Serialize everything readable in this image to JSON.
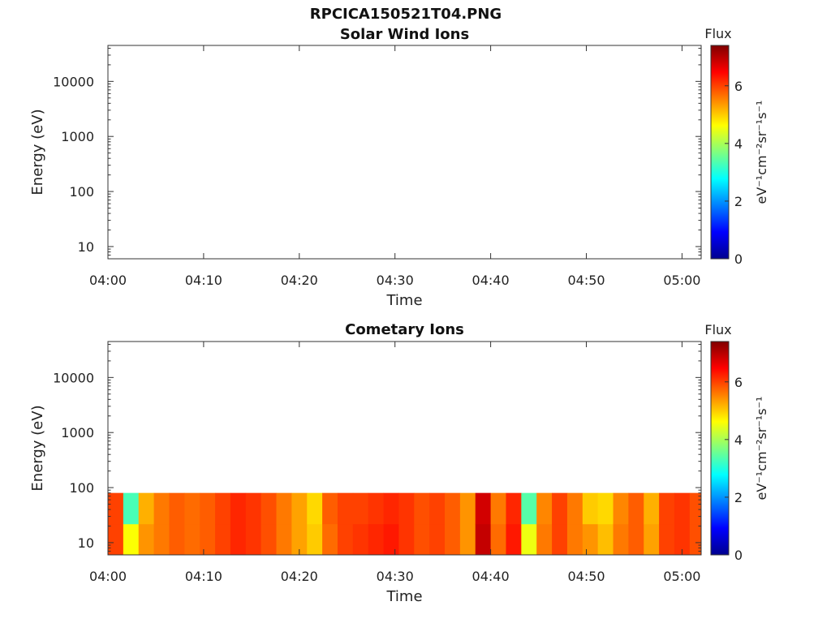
{
  "figure": {
    "title": "RPCICA150521T04.PNG"
  },
  "chart_data": [
    {
      "type": "heatmap",
      "title": "Solar Wind Ions",
      "xlabel": "Time",
      "ylabel": "Energy (eV)",
      "x_tick_labels": [
        "04:00",
        "04:10",
        "04:20",
        "04:30",
        "04:40",
        "04:50",
        "05:00"
      ],
      "x_tick_minutes": [
        0,
        10,
        20,
        30,
        40,
        50,
        60
      ],
      "xlim_minutes": [
        0,
        62
      ],
      "yscale": "log",
      "ylim": [
        6,
        45000
      ],
      "y_tick_labels": [
        "10",
        "100",
        "1000",
        "10000"
      ],
      "y_tick_values": [
        10,
        100,
        1000,
        10000
      ],
      "colorbar": {
        "title": "Flux",
        "label": "eV⁻¹cm⁻²sr⁻¹s⁻¹",
        "range": [
          0,
          7.4
        ],
        "tick_labels": [
          "0",
          "2",
          "4",
          "6"
        ],
        "tick_values": [
          0,
          2,
          4,
          6
        ]
      },
      "data": {
        "note": "",
        "columns": []
      }
    },
    {
      "type": "heatmap",
      "title": "Cometary Ions",
      "xlabel": "Time",
      "ylabel": "Energy (eV)",
      "x_tick_labels": [
        "04:00",
        "04:10",
        "04:20",
        "04:30",
        "04:40",
        "04:50",
        "05:00"
      ],
      "x_tick_minutes": [
        0,
        10,
        20,
        30,
        40,
        50,
        60
      ],
      "xlim_minutes": [
        0,
        62
      ],
      "yscale": "log",
      "ylim": [
        6,
        45000
      ],
      "y_tick_labels": [
        "10",
        "100",
        "1000",
        "10000"
      ],
      "y_tick_values": [
        10,
        100,
        1000,
        10000
      ],
      "colorbar": {
        "title": "Flux",
        "label": "eV⁻¹cm⁻²sr⁻¹s⁻¹",
        "range": [
          0,
          7.4
        ],
        "tick_labels": [
          "0",
          "2",
          "4",
          "6"
        ],
        "tick_values": [
          0,
          2,
          4,
          6
        ]
      },
      "data": {
        "energy_range_eV": [
          6,
          80
        ],
        "column_width_minutes": 1.6,
        "column_start_minutes": [
          0,
          1.6,
          3.2,
          4.8,
          6.4,
          8.0,
          9.6,
          11.2,
          12.8,
          14.4,
          16.0,
          17.6,
          19.2,
          20.8,
          22.4,
          24.0,
          25.6,
          27.2,
          28.8,
          30.4,
          32.0,
          33.6,
          35.2,
          36.8,
          38.4,
          40.0,
          41.6,
          43.2,
          44.8,
          46.4,
          48.0,
          49.6,
          51.2,
          52.8,
          54.4,
          56.0,
          57.6,
          59.2,
          60.8
        ],
        "flux_low_energy": [
          6.0,
          4.6,
          5.4,
          5.6,
          5.8,
          5.7,
          5.8,
          6.0,
          6.2,
          6.1,
          5.9,
          5.6,
          5.3,
          5.0,
          5.7,
          6.0,
          6.1,
          6.2,
          6.3,
          6.1,
          5.9,
          6.0,
          5.8,
          5.4,
          6.9,
          5.7,
          6.3,
          4.5,
          5.6,
          6.0,
          5.6,
          5.4,
          5.1,
          5.6,
          5.8,
          5.3,
          6.0,
          6.1,
          5.9
        ],
        "flux_high_energy": [
          6.0,
          3.3,
          5.2,
          5.6,
          5.8,
          5.7,
          5.8,
          6.0,
          6.2,
          6.1,
          5.9,
          5.6,
          5.3,
          4.9,
          5.8,
          6.0,
          6.0,
          6.1,
          6.2,
          6.1,
          5.9,
          6.0,
          5.8,
          5.4,
          6.8,
          5.6,
          6.2,
          3.4,
          5.5,
          6.0,
          5.6,
          5.0,
          4.9,
          5.5,
          5.8,
          5.2,
          6.0,
          6.1,
          5.9
        ]
      }
    }
  ]
}
